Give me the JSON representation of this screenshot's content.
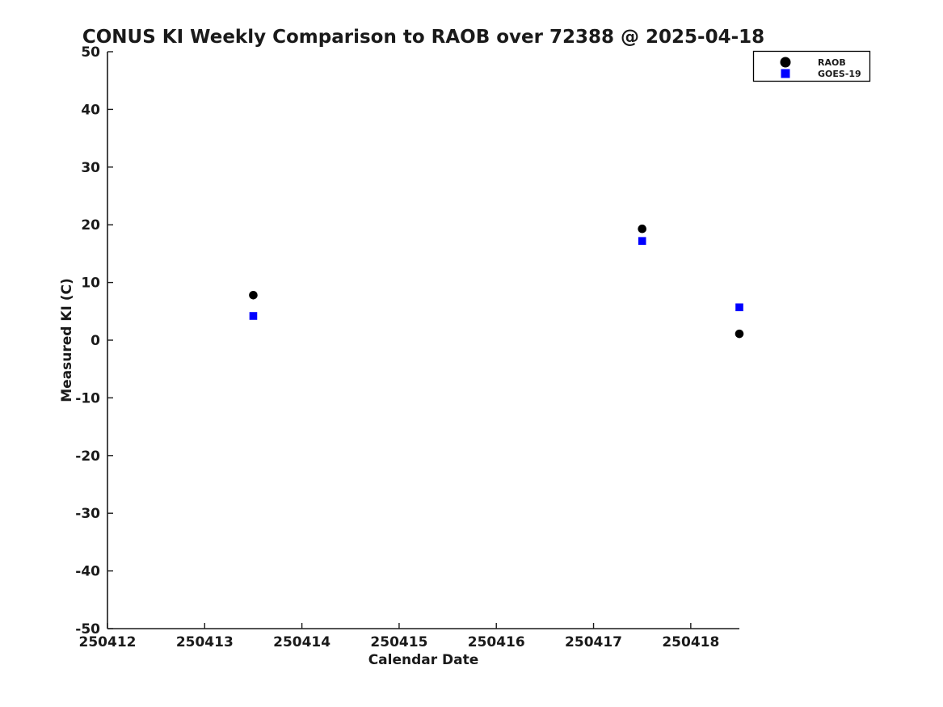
{
  "page": {
    "background": "#ffffff"
  },
  "chart_data": {
    "type": "scatter",
    "title": "CONUS KI Weekly Comparison to RAOB over 72388 @ 2025-04-18",
    "xlabel": "Calendar Date",
    "ylabel": "Measured KI (C)",
    "xlim": [
      250412,
      250418.5
    ],
    "ylim": [
      -50,
      50
    ],
    "xticks": [
      250412,
      250413,
      250414,
      250415,
      250416,
      250417,
      250418
    ],
    "yticks": [
      50,
      40,
      30,
      20,
      10,
      0,
      -10,
      -20,
      -30,
      -40,
      -50
    ],
    "grid": false,
    "legend": {
      "position": "top-right-outside",
      "border_color": "#000000",
      "background": "#ffffff"
    },
    "text_color": "#1a1a1a",
    "series": [
      {
        "name": "RAOB",
        "marker": "circle",
        "color": "#000000",
        "points": [
          {
            "x": 250413.5,
            "y": 7.8
          },
          {
            "x": 250417.5,
            "y": 19.3
          },
          {
            "x": 250418.5,
            "y": 1.1
          }
        ]
      },
      {
        "name": "GOES-19",
        "marker": "square",
        "color": "#0000ff",
        "points": [
          {
            "x": 250413.5,
            "y": 4.2
          },
          {
            "x": 250417.5,
            "y": 17.2
          },
          {
            "x": 250418.5,
            "y": 5.7
          }
        ]
      }
    ]
  }
}
